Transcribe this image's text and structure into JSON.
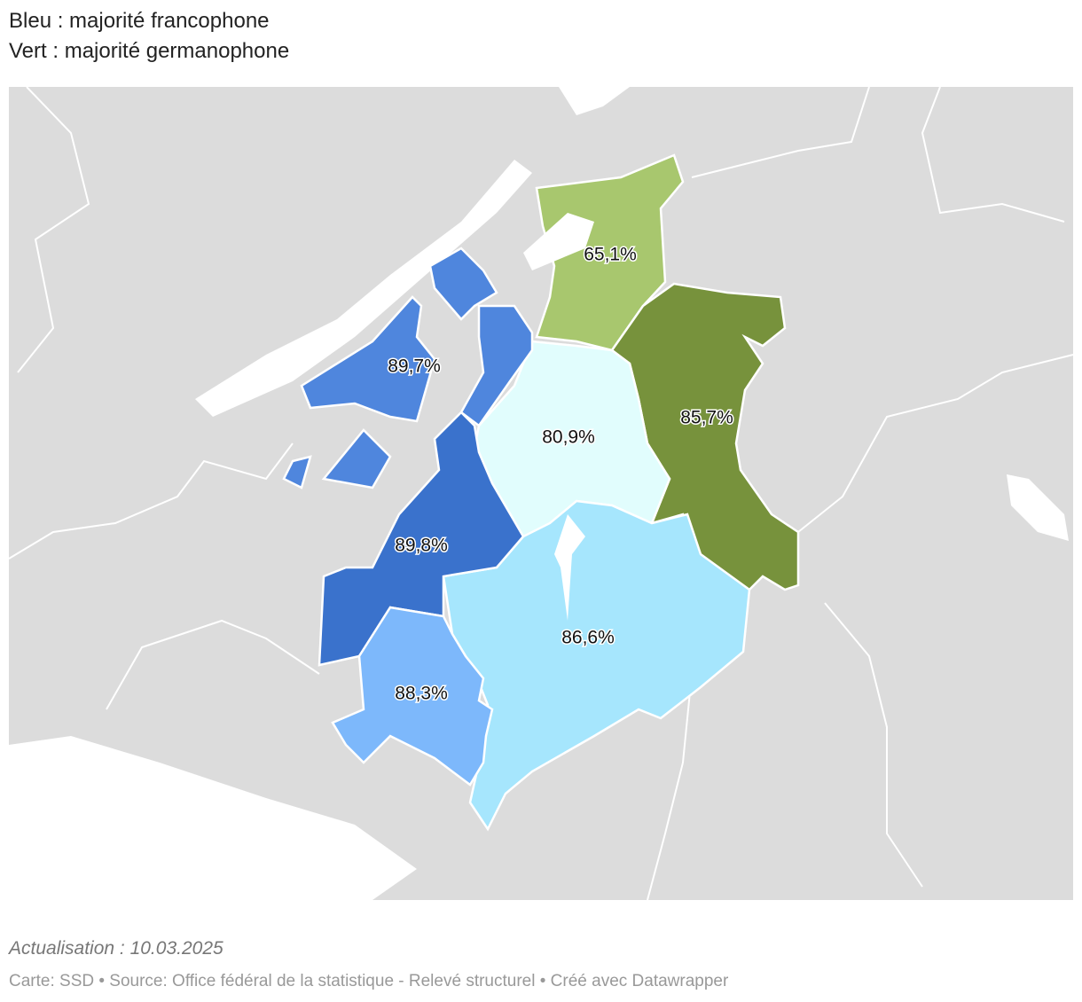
{
  "header": {
    "lines": [
      "Bleu : majorité francophone",
      "Vert : majorité germanophone"
    ]
  },
  "regions": [
    {
      "label": "65,1%",
      "color": "#a8c76e"
    },
    {
      "label": "85,7%",
      "color": "#77923c"
    },
    {
      "label": "80,9%",
      "color": "#e1fdfd"
    },
    {
      "label": "86,6%",
      "color": "#a6e6fd"
    },
    {
      "label": "89,8%",
      "color": "#3a72cc"
    },
    {
      "label": "88,3%",
      "color": "#7db8fb"
    },
    {
      "label": "89,7%",
      "color": "#4f86dd"
    }
  ],
  "footer": {
    "update": "Actualisation : 10.03.2025",
    "source": "Carte: SSD • Source: Office fédéral de la statistique - Relevé structurel • Créé avec Datawrapper"
  }
}
